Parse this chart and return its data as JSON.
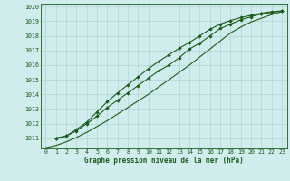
{
  "xlabel": "Graphe pression niveau de la mer (hPa)",
  "xlim": [
    -0.5,
    23.5
  ],
  "ylim": [
    1010.3,
    1020.2
  ],
  "yticks": [
    1011,
    1012,
    1013,
    1014,
    1015,
    1016,
    1017,
    1018,
    1019,
    1020
  ],
  "xticks": [
    0,
    1,
    2,
    3,
    4,
    5,
    6,
    7,
    8,
    9,
    10,
    11,
    12,
    13,
    14,
    15,
    16,
    17,
    18,
    19,
    20,
    21,
    22,
    23
  ],
  "background_color": "#d0ecec",
  "grid_color": "#b0d4d4",
  "line_color": "#1a5c1a",
  "line1_markers": [
    1011.0,
    1011.15,
    1011.5,
    1012.0,
    1012.5,
    1013.1,
    1013.6,
    1014.1,
    1014.6,
    1015.1,
    1015.6,
    1016.0,
    1016.5,
    1017.1,
    1017.5,
    1018.0,
    1018.5,
    1018.8,
    1019.1,
    1019.3,
    1019.5,
    1019.6,
    1019.7
  ],
  "line2_markers": [
    1011.0,
    1011.15,
    1011.6,
    1012.1,
    1012.8,
    1013.5,
    1014.1,
    1014.65,
    1015.2,
    1015.75,
    1016.25,
    1016.7,
    1017.15,
    1017.55,
    1018.0,
    1018.45,
    1018.8,
    1019.05,
    1019.25,
    1019.4,
    1019.55,
    1019.65,
    1019.7
  ],
  "line3": [
    1010.35,
    1010.5,
    1010.75,
    1011.05,
    1011.4,
    1011.8,
    1012.2,
    1012.65,
    1013.1,
    1013.55,
    1014.0,
    1014.5,
    1015.0,
    1015.5,
    1016.0,
    1016.55,
    1017.1,
    1017.65,
    1018.2,
    1018.6,
    1018.95,
    1019.2,
    1019.45,
    1019.65
  ]
}
